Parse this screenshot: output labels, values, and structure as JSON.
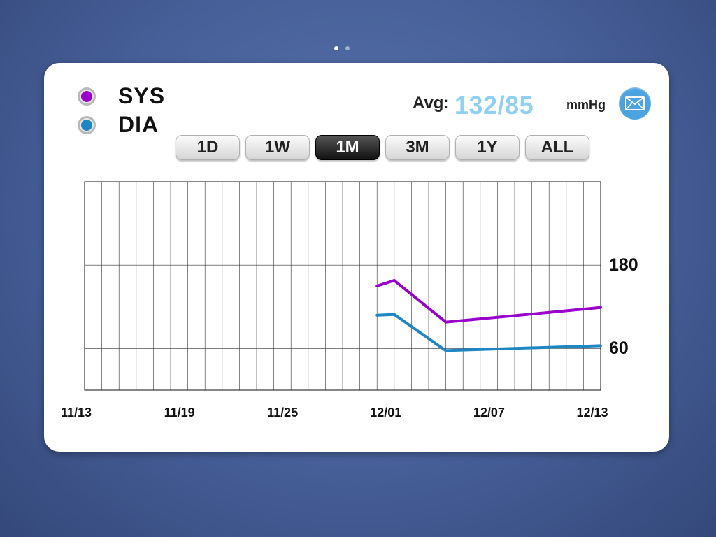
{
  "pager": {
    "pages": 2,
    "active_index": 0
  },
  "legend": [
    {
      "label": "SYS",
      "color": "#9a00cc"
    },
    {
      "label": "DIA",
      "color": "#1f86c4"
    }
  ],
  "average": {
    "label": "Avg:",
    "value": "132/85",
    "unit": "mmHg",
    "value_color": "#8fd0f3"
  },
  "share_icon": "mail-icon",
  "range_tabs": [
    "1D",
    "1W",
    "1M",
    "3M",
    "1Y",
    "ALL"
  ],
  "active_range": "1M",
  "chart_data": {
    "type": "line",
    "x_tick_labels": [
      "11/13",
      "11/19",
      "11/25",
      "12/01",
      "12/07",
      "12/13"
    ],
    "y_tick_labels": [
      "180",
      "60"
    ],
    "xlim": [
      "11/13",
      "12/13"
    ],
    "ylim": [
      0,
      300
    ],
    "grid": true,
    "series": [
      {
        "name": "SYS",
        "color": "#9a00cc",
        "points": [
          {
            "x": "11/30",
            "y": 150
          },
          {
            "x": "12/01",
            "y": 158
          },
          {
            "x": "12/04",
            "y": 98
          },
          {
            "x": "12/13",
            "y": 119
          }
        ]
      },
      {
        "name": "DIA",
        "color": "#1f86c4",
        "points": [
          {
            "x": "11/30",
            "y": 108
          },
          {
            "x": "12/01",
            "y": 109
          },
          {
            "x": "12/04",
            "y": 57
          },
          {
            "x": "12/13",
            "y": 64
          }
        ]
      }
    ]
  }
}
